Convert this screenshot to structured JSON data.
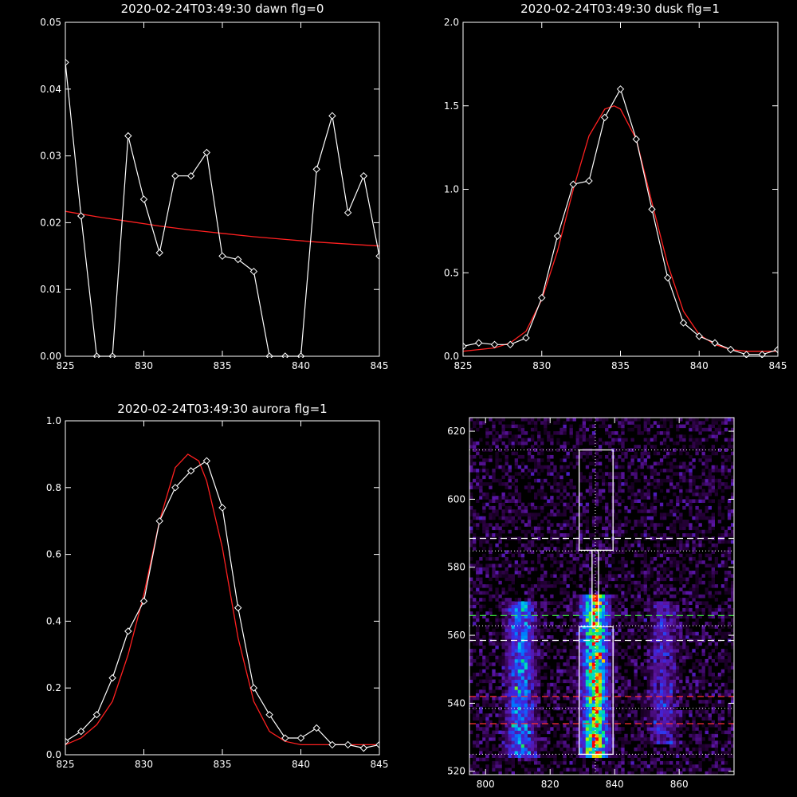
{
  "colors": {
    "background": "#000000",
    "data": "#ffffff",
    "fit": "#ff2020",
    "green_line": "#40ff40",
    "red_line": "#ff3030"
  },
  "chart_data": [
    {
      "type": "line",
      "title": "2020-02-24T03:49:30 dawn flg=0",
      "xlim": [
        825,
        845
      ],
      "ylim": [
        0,
        0.05
      ],
      "xticks": [
        825,
        830,
        835,
        840,
        845
      ],
      "xtick_labels": [
        "825",
        "830",
        "835",
        "840",
        "845"
      ],
      "yticks": [
        0,
        0.01,
        0.02,
        0.03,
        0.04,
        0.05
      ],
      "ytick_labels": [
        "0.00",
        "0.01",
        "0.02",
        "0.03",
        "0.04",
        "0.05"
      ],
      "series": [
        {
          "marker": "diamond",
          "x": [
            825,
            826,
            827,
            828,
            829,
            830,
            831,
            832,
            833,
            834,
            835,
            836,
            837,
            838,
            839,
            840,
            841,
            842,
            843,
            844,
            845
          ],
          "y": [
            0.044,
            0.021,
            0.0,
            0.0,
            0.033,
            0.0235,
            0.0155,
            0.027,
            0.027,
            0.0305,
            0.015,
            0.0145,
            0.0127,
            0.0,
            0.0,
            0.0,
            0.028,
            0.036,
            0.0215,
            0.027,
            0.015
          ]
        },
        {
          "style": "fit",
          "x": [
            825,
            827,
            829,
            831,
            833,
            835,
            837,
            839,
            841,
            843,
            845
          ],
          "y": [
            0.0217,
            0.0209,
            0.0202,
            0.0195,
            0.0189,
            0.0184,
            0.0179,
            0.0175,
            0.0171,
            0.0168,
            0.0165
          ]
        }
      ]
    },
    {
      "type": "line",
      "title": "2020-02-24T03:49:30 dusk flg=1",
      "xlim": [
        825,
        845
      ],
      "ylim": [
        0,
        2.0
      ],
      "xticks": [
        825,
        830,
        835,
        840,
        845
      ],
      "xtick_labels": [
        "825",
        "830",
        "835",
        "840",
        "845"
      ],
      "yticks": [
        0,
        0.5,
        1.0,
        1.5,
        2.0
      ],
      "ytick_labels": [
        "0.0",
        "0.5",
        "1.0",
        "1.5",
        "2.0"
      ],
      "series": [
        {
          "marker": "diamond",
          "x": [
            825,
            826,
            827,
            828,
            829,
            830,
            831,
            832,
            833,
            834,
            835,
            836,
            837,
            838,
            839,
            840,
            841,
            842,
            843,
            844,
            845
          ],
          "y": [
            0.06,
            0.08,
            0.07,
            0.07,
            0.11,
            0.35,
            0.72,
            1.03,
            1.05,
            1.43,
            1.6,
            1.3,
            0.88,
            0.47,
            0.2,
            0.12,
            0.08,
            0.04,
            0.01,
            0.01,
            0.04
          ]
        },
        {
          "style": "fit",
          "x": [
            825,
            826,
            827,
            828,
            829,
            830,
            831,
            832,
            833,
            834,
            834.6,
            835,
            836,
            837,
            838,
            839,
            840,
            841,
            842,
            843,
            844,
            845
          ],
          "y": [
            0.03,
            0.04,
            0.05,
            0.08,
            0.15,
            0.34,
            0.63,
            1.0,
            1.32,
            1.48,
            1.5,
            1.48,
            1.3,
            0.92,
            0.55,
            0.27,
            0.13,
            0.07,
            0.04,
            0.03,
            0.03,
            0.03
          ]
        }
      ]
    },
    {
      "type": "line",
      "title": "2020-02-24T03:49:30 aurora flg=1",
      "xlim": [
        825,
        845
      ],
      "ylim": [
        0,
        1.0
      ],
      "xticks": [
        825,
        830,
        835,
        840,
        845
      ],
      "xtick_labels": [
        "825",
        "830",
        "835",
        "840",
        "845"
      ],
      "yticks": [
        0,
        0.2,
        0.4,
        0.6,
        0.8,
        1.0
      ],
      "ytick_labels": [
        "0.0",
        "0.2",
        "0.4",
        "0.6",
        "0.8",
        "1.0"
      ],
      "series": [
        {
          "marker": "diamond",
          "x": [
            825,
            826,
            827,
            828,
            829,
            830,
            831,
            832,
            833,
            834,
            835,
            836,
            837,
            838,
            839,
            840,
            841,
            842,
            843,
            844,
            845
          ],
          "y": [
            0.04,
            0.07,
            0.12,
            0.23,
            0.37,
            0.46,
            0.7,
            0.8,
            0.85,
            0.88,
            0.74,
            0.44,
            0.2,
            0.12,
            0.05,
            0.05,
            0.08,
            0.03,
            0.03,
            0.02,
            0.03
          ]
        },
        {
          "style": "fit",
          "x": [
            825,
            826,
            827,
            828,
            829,
            830,
            831,
            832,
            832.8,
            833.5,
            834,
            835,
            836,
            837,
            838,
            839,
            840,
            841,
            842,
            843,
            844,
            845
          ],
          "y": [
            0.03,
            0.05,
            0.09,
            0.16,
            0.3,
            0.48,
            0.7,
            0.86,
            0.9,
            0.88,
            0.82,
            0.62,
            0.35,
            0.16,
            0.07,
            0.04,
            0.03,
            0.03,
            0.03,
            0.03,
            0.03,
            0.03
          ]
        }
      ]
    },
    {
      "type": "heatmap",
      "xlim": [
        795,
        877
      ],
      "ylim": [
        519,
        624
      ],
      "xticks": [
        800,
        820,
        840,
        860
      ],
      "xtick_labels": [
        "800",
        "820",
        "840",
        "860"
      ],
      "yticks": [
        520,
        540,
        560,
        580,
        600,
        620
      ],
      "ytick_labels": [
        "520",
        "540",
        "560",
        "580",
        "600",
        "620"
      ],
      "vertical_dotted_x": 834,
      "dotted_hlines": [
        525,
        538.5,
        562.8,
        584.8,
        614.5
      ],
      "white_dashed_hlines": [
        588.5,
        558.5
      ],
      "green_dashed_hlines": [
        565.8
      ],
      "red_dashed_hlines": [
        542,
        534
      ],
      "boxes": [
        {
          "x": [
            829,
            839.5
          ],
          "y": [
            525,
            562.5
          ]
        },
        {
          "x": [
            829,
            839.5
          ],
          "y": [
            585,
            614.5
          ]
        },
        {
          "x": [
            833,
            835
          ],
          "y": [
            562.5,
            585
          ]
        }
      ],
      "bands": [
        {
          "center": 811,
          "width": 4.5,
          "ymin": 524,
          "ymax": 570,
          "intensity": 0.55
        },
        {
          "center": 834,
          "width": 4.2,
          "ymin": 524,
          "ymax": 572,
          "intensity": 0.95
        },
        {
          "center": 855,
          "width": 4.5,
          "ymin": 528,
          "ymax": 570,
          "intensity": 0.3
        }
      ]
    }
  ]
}
